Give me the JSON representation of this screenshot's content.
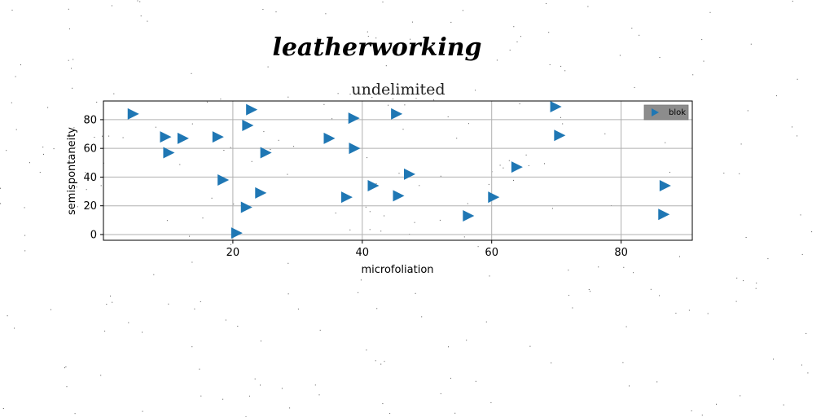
{
  "chart_data": {
    "type": "scatter",
    "suptitle": "leatherworking",
    "title": "undelimited",
    "xlabel": "microfoliation",
    "ylabel": "semispontaneity",
    "xlim": [
      0,
      91
    ],
    "ylim": [
      -4,
      93
    ],
    "xticks": [
      20,
      40,
      60,
      80
    ],
    "yticks": [
      0,
      20,
      40,
      60,
      80
    ],
    "grid": true,
    "legend_position": "top-right",
    "series": [
      {
        "name": "blok",
        "color": "#1f77b4",
        "marker": "triangle-right",
        "points": [
          [
            4.5,
            84
          ],
          [
            9.5,
            68
          ],
          [
            10,
            57
          ],
          [
            12.2,
            67
          ],
          [
            17.6,
            68
          ],
          [
            18.4,
            38
          ],
          [
            20.5,
            1
          ],
          [
            22,
            19
          ],
          [
            22.2,
            76
          ],
          [
            22.8,
            87
          ],
          [
            24.2,
            29
          ],
          [
            25,
            57
          ],
          [
            34.8,
            67
          ],
          [
            37.5,
            26
          ],
          [
            38.6,
            81
          ],
          [
            38.7,
            60
          ],
          [
            41.6,
            34
          ],
          [
            45.2,
            84
          ],
          [
            45.5,
            27
          ],
          [
            47.2,
            42
          ],
          [
            56.3,
            13
          ],
          [
            60.2,
            26
          ],
          [
            63.8,
            47
          ],
          [
            69.8,
            89
          ],
          [
            70.4,
            69
          ],
          [
            86.5,
            14
          ],
          [
            86.7,
            34
          ]
        ]
      }
    ]
  }
}
